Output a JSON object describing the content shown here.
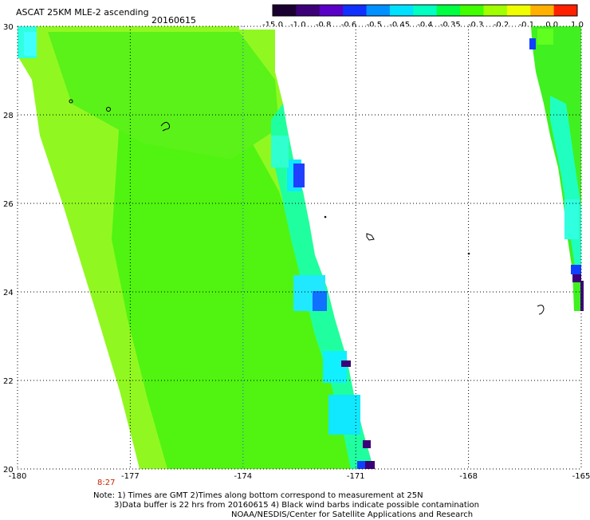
{
  "header": {
    "title": "ASCAT 25KM MLE-2 ascending",
    "date": "20160615"
  },
  "colorbar": {
    "labels": [
      "-15.0",
      "-1.0",
      "-0.8",
      "-0.6",
      "-0.5",
      "-0.45",
      "-0.4",
      "-0.35",
      "-0.3",
      "-0.2",
      "-0.1",
      "0.0",
      "1.0"
    ],
    "colors": [
      "#1a0030",
      "#3c0078",
      "#5a00c8",
      "#1030ff",
      "#0090ff",
      "#00e0ff",
      "#00ffc0",
      "#00ff40",
      "#40ff00",
      "#a0ff00",
      "#f0ff00",
      "#ffb000",
      "#ff2000"
    ]
  },
  "map": {
    "lon_range": [
      -180,
      -165
    ],
    "lat_range": [
      20,
      30
    ],
    "lon_ticks": [
      "-180",
      "-177",
      "-174",
      "-171",
      "-168",
      "-165"
    ],
    "lat_ticks": [
      "30",
      "28",
      "26",
      "24",
      "22",
      "20"
    ],
    "time_label": "8:27",
    "colors": {
      "light_green": "#a0ff20",
      "green": "#40ff00",
      "cyan": "#00f0ff",
      "blue": "#1030ff",
      "purple": "#3c0078"
    }
  },
  "notes": {
    "line1": "Note: 1) Times are GMT 2)Times along bottom correspond to measurement at 25N",
    "line2": "3)Data buffer is 22 hrs from 20160615 4) Black wind barbs indicate possible contamination",
    "line3": "NOAA/NESDIS/Center for Satellite Applications and Research"
  }
}
